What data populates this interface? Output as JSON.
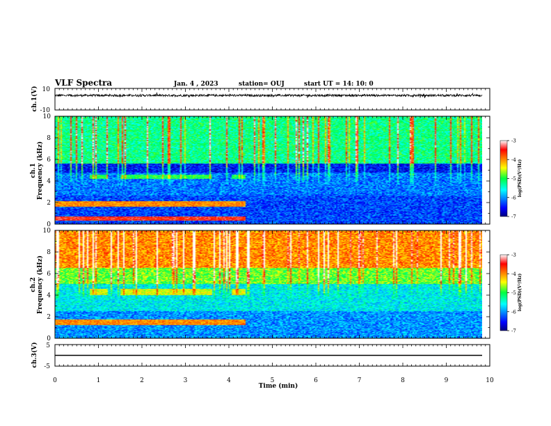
{
  "header": {
    "title": "VLF Spectra",
    "date": "Jan. 4 , 2023",
    "station": "station= OUJ",
    "start": "start UT =  14: 10: 0"
  },
  "chart_data": [
    {
      "type": "line",
      "panel": "ch1-waveform",
      "ylabel": "ch.1(V)",
      "ylim": [
        -10,
        10
      ],
      "yticks": [
        "10",
        "-10"
      ],
      "xlim": [
        0,
        10
      ],
      "baseline": 3.5,
      "amplitude": 1.0
    },
    {
      "type": "heatmap",
      "panel": "ch1-spectrogram",
      "ylabel": "ch.1\nFrequency (kHz)",
      "ylim": [
        0,
        10
      ],
      "yticks": [
        "0",
        "2",
        "4",
        "6",
        "8",
        "10"
      ],
      "xlim": [
        0,
        9.83
      ],
      "colorbar": {
        "label": "log(PSD)(V²/Hz)",
        "range": [
          -7,
          -3
        ],
        "ticks": [
          "-3",
          "-4",
          "-5",
          "-6",
          "-7"
        ]
      },
      "bands": [
        {
          "t_end": 4.4,
          "f_low": 1.6,
          "f_high": 2.1,
          "level": -4.0
        },
        {
          "t_end": 4.4,
          "f_low": 0.3,
          "f_high": 0.7,
          "level": -3.5
        },
        {
          "t_start": 1.5,
          "t_end": 3.6,
          "f_low": 4.2,
          "f_high": 4.6,
          "level": -5.0
        },
        {
          "t_start": 0.8,
          "t_end": 1.2,
          "f_low": 4.2,
          "f_high": 4.6,
          "level": -5.0
        },
        {
          "t_start": 4.05,
          "t_end": 4.4,
          "f_low": 4.2,
          "f_high": 4.6,
          "level": -5.0
        }
      ]
    },
    {
      "type": "heatmap",
      "panel": "ch2-spectrogram",
      "ylabel": "ch.2\nFrequency (kHz)",
      "ylim": [
        0,
        10
      ],
      "yticks": [
        "0",
        "2",
        "4",
        "6",
        "8",
        "10"
      ],
      "xlim": [
        0,
        9.83
      ],
      "colorbar": {
        "label": "log(PSD)(V²/Hz)",
        "range": [
          -7,
          -3
        ],
        "ticks": [
          "-3",
          "-4",
          "-5",
          "-6",
          "-7"
        ]
      },
      "bands": [
        {
          "t_end": 4.4,
          "f_low": 1.2,
          "f_high": 1.7,
          "level": -4.0
        },
        {
          "t_start": 1.5,
          "t_end": 3.6,
          "f_low": 4.0,
          "f_high": 4.6,
          "level": -4.5
        },
        {
          "t_start": 0.8,
          "t_end": 1.2,
          "f_low": 4.0,
          "f_high": 4.6,
          "level": -4.5
        },
        {
          "t_start": 4.05,
          "t_end": 4.4,
          "f_low": 4.0,
          "f_high": 4.6,
          "level": -4.5
        }
      ]
    },
    {
      "type": "line",
      "panel": "ch3-waveform",
      "ylabel": "ch.3(V)",
      "ylim": [
        -5,
        5
      ],
      "yticks": [
        "5",
        "-5"
      ],
      "xlim": [
        0,
        10
      ],
      "baseline": 0,
      "amplitude": 0
    }
  ],
  "xaxis": {
    "label": "Time (min)",
    "ticks": [
      "0",
      "1",
      "2",
      "3",
      "4",
      "5",
      "6",
      "7",
      "8",
      "9",
      "10"
    ]
  }
}
